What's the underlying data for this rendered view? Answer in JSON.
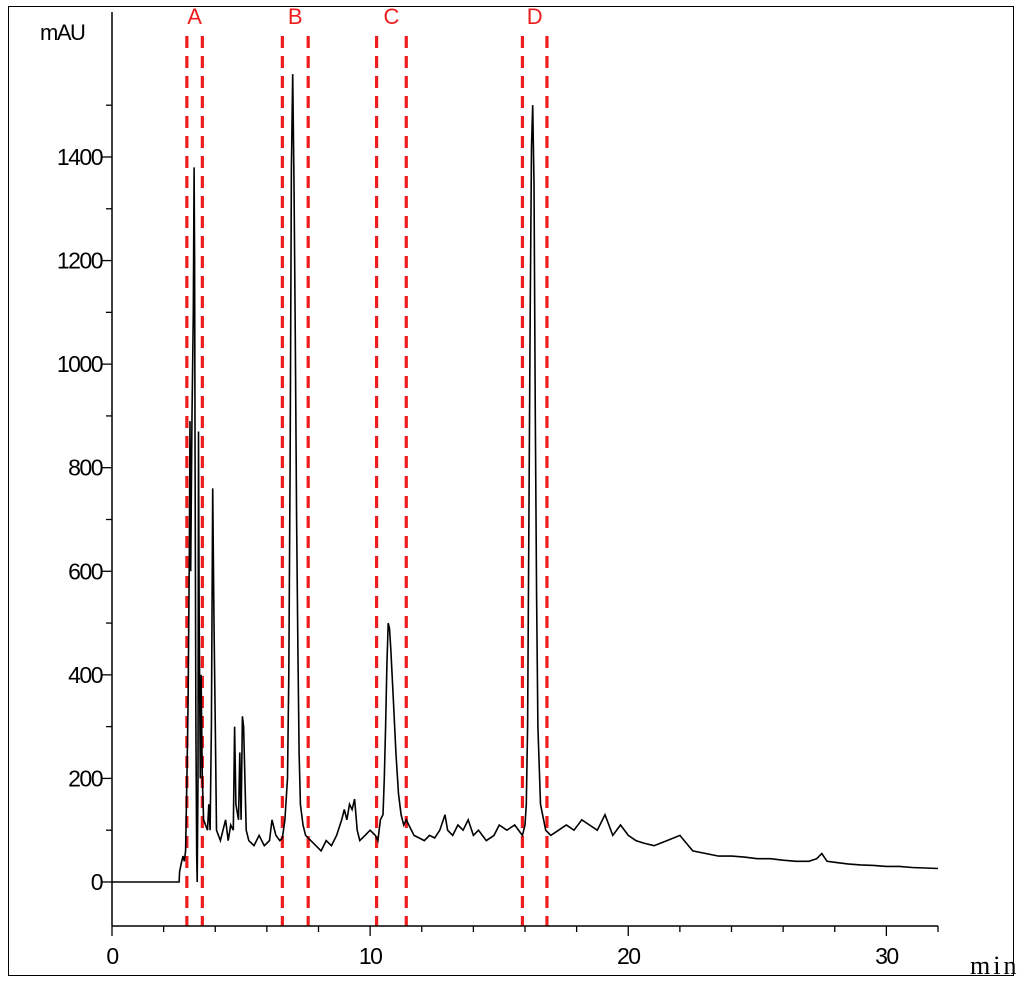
{
  "chart_data": {
    "type": "line",
    "title": "",
    "ylabel": "mAU",
    "xlabel": "min",
    "xlim": [
      0,
      32
    ],
    "ylim": [
      -85,
      1680
    ],
    "x_ticks": [
      0,
      10,
      20,
      30
    ],
    "x_minor_step": 2,
    "y_ticks": [
      0,
      200,
      400,
      600,
      800,
      1000,
      1200,
      1400
    ],
    "y_minor_step": 100,
    "line_color": "#000000",
    "region_color": "#ee1c1c",
    "regions": [
      {
        "label": "A",
        "start": 2.9,
        "end": 3.5
      },
      {
        "label": "B",
        "start": 6.6,
        "end": 7.6
      },
      {
        "label": "C",
        "start": 10.25,
        "end": 11.4
      },
      {
        "label": "D",
        "start": 15.9,
        "end": 16.85
      }
    ],
    "series": [
      {
        "points": [
          [
            0.0,
            0
          ],
          [
            2.6,
            0
          ],
          [
            2.62,
            20
          ],
          [
            2.7,
            40
          ],
          [
            2.75,
            50
          ],
          [
            2.8,
            40
          ],
          [
            2.85,
            60
          ],
          [
            2.9,
            200
          ],
          [
            2.95,
            350
          ],
          [
            3.0,
            650
          ],
          [
            3.02,
            890
          ],
          [
            3.05,
            600
          ],
          [
            3.1,
            900
          ],
          [
            3.15,
            1100
          ],
          [
            3.18,
            1380
          ],
          [
            3.2,
            1200
          ],
          [
            3.22,
            800
          ],
          [
            3.25,
            300
          ],
          [
            3.28,
            50
          ],
          [
            3.3,
            0
          ],
          [
            3.33,
            200
          ],
          [
            3.35,
            870
          ],
          [
            3.38,
            500
          ],
          [
            3.42,
            200
          ],
          [
            3.45,
            400
          ],
          [
            3.5,
            200
          ],
          [
            3.55,
            120
          ],
          [
            3.7,
            100
          ],
          [
            3.75,
            150
          ],
          [
            3.8,
            100
          ],
          [
            3.85,
            300
          ],
          [
            3.9,
            760
          ],
          [
            3.95,
            500
          ],
          [
            4.0,
            300
          ],
          [
            4.05,
            100
          ],
          [
            4.2,
            80
          ],
          [
            4.4,
            120
          ],
          [
            4.5,
            80
          ],
          [
            4.6,
            110
          ],
          [
            4.7,
            100
          ],
          [
            4.75,
            300
          ],
          [
            4.8,
            150
          ],
          [
            4.9,
            120
          ],
          [
            4.95,
            250
          ],
          [
            5.0,
            120
          ],
          [
            5.05,
            320
          ],
          [
            5.1,
            300
          ],
          [
            5.15,
            200
          ],
          [
            5.2,
            100
          ],
          [
            5.3,
            80
          ],
          [
            5.5,
            70
          ],
          [
            5.7,
            90
          ],
          [
            5.9,
            70
          ],
          [
            6.1,
            80
          ],
          [
            6.2,
            120
          ],
          [
            6.35,
            90
          ],
          [
            6.5,
            80
          ],
          [
            6.6,
            85
          ],
          [
            6.7,
            120
          ],
          [
            6.8,
            200
          ],
          [
            6.85,
            400
          ],
          [
            6.9,
            800
          ],
          [
            6.95,
            1380
          ],
          [
            7.0,
            1560
          ],
          [
            7.05,
            1350
          ],
          [
            7.1,
            1050
          ],
          [
            7.15,
            700
          ],
          [
            7.2,
            450
          ],
          [
            7.25,
            250
          ],
          [
            7.3,
            150
          ],
          [
            7.4,
            110
          ],
          [
            7.5,
            90
          ],
          [
            7.7,
            80
          ],
          [
            7.9,
            70
          ],
          [
            8.1,
            60
          ],
          [
            8.3,
            80
          ],
          [
            8.5,
            70
          ],
          [
            8.7,
            90
          ],
          [
            8.9,
            120
          ],
          [
            9.0,
            140
          ],
          [
            9.1,
            120
          ],
          [
            9.2,
            150
          ],
          [
            9.3,
            140
          ],
          [
            9.4,
            160
          ],
          [
            9.5,
            100
          ],
          [
            9.6,
            80
          ],
          [
            9.8,
            90
          ],
          [
            10.0,
            100
          ],
          [
            10.2,
            90
          ],
          [
            10.3,
            80
          ],
          [
            10.4,
            120
          ],
          [
            10.5,
            130
          ],
          [
            10.55,
            200
          ],
          [
            10.6,
            300
          ],
          [
            10.65,
            420
          ],
          [
            10.7,
            500
          ],
          [
            10.75,
            490
          ],
          [
            10.8,
            450
          ],
          [
            10.9,
            350
          ],
          [
            11.0,
            250
          ],
          [
            11.1,
            170
          ],
          [
            11.2,
            130
          ],
          [
            11.3,
            110
          ],
          [
            11.4,
            120
          ],
          [
            11.5,
            110
          ],
          [
            11.7,
            90
          ],
          [
            11.9,
            85
          ],
          [
            12.1,
            80
          ],
          [
            12.3,
            90
          ],
          [
            12.5,
            85
          ],
          [
            12.7,
            100
          ],
          [
            12.9,
            130
          ],
          [
            13.0,
            100
          ],
          [
            13.2,
            90
          ],
          [
            13.4,
            110
          ],
          [
            13.6,
            100
          ],
          [
            13.8,
            120
          ],
          [
            14.0,
            90
          ],
          [
            14.2,
            100
          ],
          [
            14.5,
            80
          ],
          [
            14.8,
            90
          ],
          [
            15.0,
            110
          ],
          [
            15.3,
            100
          ],
          [
            15.6,
            110
          ],
          [
            15.9,
            90
          ],
          [
            16.0,
            110
          ],
          [
            16.05,
            150
          ],
          [
            16.1,
            300
          ],
          [
            16.15,
            700
          ],
          [
            16.2,
            1100
          ],
          [
            16.25,
            1420
          ],
          [
            16.3,
            1500
          ],
          [
            16.35,
            1350
          ],
          [
            16.4,
            900
          ],
          [
            16.45,
            550
          ],
          [
            16.5,
            300
          ],
          [
            16.6,
            150
          ],
          [
            16.8,
            100
          ],
          [
            17.0,
            90
          ],
          [
            17.3,
            100
          ],
          [
            17.6,
            110
          ],
          [
            17.9,
            100
          ],
          [
            18.2,
            120
          ],
          [
            18.5,
            110
          ],
          [
            18.8,
            100
          ],
          [
            19.1,
            130
          ],
          [
            19.4,
            90
          ],
          [
            19.7,
            110
          ],
          [
            20.0,
            90
          ],
          [
            20.3,
            80
          ],
          [
            20.6,
            75
          ],
          [
            21.0,
            70
          ],
          [
            21.5,
            80
          ],
          [
            22.0,
            90
          ],
          [
            22.5,
            60
          ],
          [
            23.0,
            55
          ],
          [
            23.5,
            50
          ],
          [
            24.0,
            50
          ],
          [
            24.5,
            48
          ],
          [
            25.0,
            45
          ],
          [
            25.5,
            45
          ],
          [
            26.0,
            42
          ],
          [
            26.5,
            40
          ],
          [
            27.0,
            40
          ],
          [
            27.3,
            45
          ],
          [
            27.5,
            55
          ],
          [
            27.7,
            40
          ],
          [
            28.0,
            38
          ],
          [
            28.5,
            35
          ],
          [
            29.0,
            33
          ],
          [
            29.5,
            32
          ],
          [
            30.0,
            30
          ],
          [
            30.5,
            30
          ],
          [
            31.0,
            28
          ],
          [
            31.5,
            27
          ],
          [
            32.0,
            26
          ]
        ]
      }
    ]
  }
}
